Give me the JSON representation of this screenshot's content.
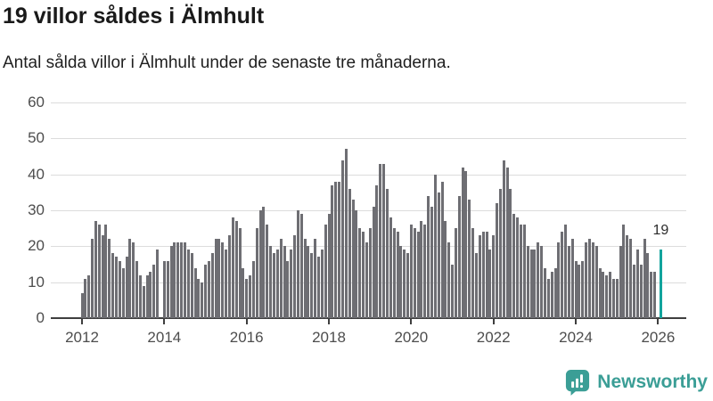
{
  "header": {
    "title": "19 villor såldes i Älmhult",
    "subtitle": "Antal sålda villor i Älmhult under de senaste tre månaderna."
  },
  "chart_data": {
    "type": "bar",
    "title": "19 villor såldes i Älmhult",
    "subtitle": "Antal sålda villor i Älmhult under de senaste tre månaderna.",
    "xlabel": "",
    "ylabel": "",
    "x_start": "2012-01",
    "x_interval": "month",
    "ylim": [
      0,
      60
    ],
    "yticks": [
      0,
      10,
      20,
      30,
      40,
      50,
      60
    ],
    "xticks": [
      2012,
      2014,
      2016,
      2018,
      2020,
      2022,
      2024,
      2026
    ],
    "grid": true,
    "legend": "none",
    "values": [
      7,
      11,
      12,
      22,
      27,
      26,
      23,
      26,
      22,
      18,
      17,
      16,
      14,
      17,
      22,
      21,
      16,
      12,
      9,
      12,
      13,
      15,
      19,
      0,
      16,
      16,
      20,
      21,
      21,
      21,
      21,
      19,
      18,
      14,
      11,
      10,
      15,
      16,
      18,
      22,
      22,
      21,
      19,
      23,
      28,
      27,
      25,
      14,
      11,
      12,
      16,
      25,
      30,
      31,
      26,
      20,
      18,
      19,
      22,
      20,
      16,
      19,
      23,
      30,
      29,
      22,
      20,
      18,
      22,
      17,
      19,
      26,
      29,
      37,
      38,
      38,
      44,
      47,
      36,
      33,
      30,
      25,
      24,
      21,
      25,
      31,
      37,
      43,
      43,
      36,
      28,
      25,
      24,
      20,
      19,
      18,
      26,
      25,
      24,
      27,
      26,
      34,
      31,
      40,
      35,
      38,
      27,
      21,
      15,
      25,
      34,
      42,
      41,
      33,
      25,
      18,
      23,
      24,
      24,
      19,
      23,
      32,
      36,
      44,
      42,
      36,
      29,
      28,
      26,
      26,
      20,
      19,
      19,
      21,
      20,
      14,
      11,
      13,
      14,
      21,
      24,
      26,
      20,
      22,
      16,
      15,
      16,
      21,
      22,
      21,
      20,
      14,
      13,
      12,
      13,
      11,
      11,
      20,
      26,
      23,
      22,
      15,
      19,
      15,
      22,
      18,
      13,
      13,
      19
    ],
    "highlight_index": 168,
    "highlight_label": "19"
  },
  "footer": {
    "brand": "Newsworthy"
  },
  "colors": {
    "text": "#1a1a1a",
    "bar": "#6e6e73",
    "accent": "#12a49d",
    "brand": "#3b9e96",
    "gridline": "#dcdcdc",
    "axis": "#3f3f3f"
  }
}
